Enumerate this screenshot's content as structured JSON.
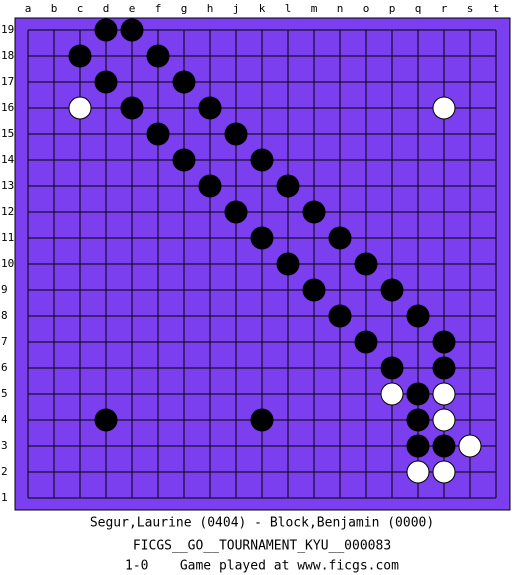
{
  "board": {
    "columns": [
      "a",
      "b",
      "c",
      "d",
      "e",
      "f",
      "g",
      "h",
      "j",
      "k",
      "l",
      "m",
      "n",
      "o",
      "p",
      "q",
      "r",
      "s",
      "t"
    ],
    "rows": [
      "19",
      "18",
      "17",
      "16",
      "15",
      "14",
      "13",
      "12",
      "11",
      "10",
      "9",
      "8",
      "7",
      "6",
      "5",
      "4",
      "3",
      "2",
      "1"
    ],
    "color": "#7b3ff0",
    "stones": [
      {
        "color": "black",
        "col": "d",
        "row": "19"
      },
      {
        "color": "black",
        "col": "e",
        "row": "19"
      },
      {
        "color": "black",
        "col": "c",
        "row": "18"
      },
      {
        "color": "black",
        "col": "f",
        "row": "18"
      },
      {
        "color": "black",
        "col": "d",
        "row": "17"
      },
      {
        "color": "black",
        "col": "g",
        "row": "17"
      },
      {
        "color": "white",
        "col": "c",
        "row": "16"
      },
      {
        "color": "black",
        "col": "e",
        "row": "16"
      },
      {
        "color": "black",
        "col": "h",
        "row": "16"
      },
      {
        "color": "white",
        "col": "r",
        "row": "16"
      },
      {
        "color": "black",
        "col": "f",
        "row": "15"
      },
      {
        "color": "black",
        "col": "j",
        "row": "15"
      },
      {
        "color": "black",
        "col": "g",
        "row": "14"
      },
      {
        "color": "black",
        "col": "k",
        "row": "14"
      },
      {
        "color": "black",
        "col": "h",
        "row": "13"
      },
      {
        "color": "black",
        "col": "l",
        "row": "13"
      },
      {
        "color": "black",
        "col": "j",
        "row": "12"
      },
      {
        "color": "black",
        "col": "m",
        "row": "12"
      },
      {
        "color": "black",
        "col": "k",
        "row": "11"
      },
      {
        "color": "black",
        "col": "n",
        "row": "11"
      },
      {
        "color": "black",
        "col": "l",
        "row": "10"
      },
      {
        "color": "black",
        "col": "o",
        "row": "10"
      },
      {
        "color": "black",
        "col": "m",
        "row": "9"
      },
      {
        "color": "black",
        "col": "p",
        "row": "9"
      },
      {
        "color": "black",
        "col": "n",
        "row": "8"
      },
      {
        "color": "black",
        "col": "q",
        "row": "8"
      },
      {
        "color": "black",
        "col": "o",
        "row": "7"
      },
      {
        "color": "black",
        "col": "r",
        "row": "7"
      },
      {
        "color": "black",
        "col": "p",
        "row": "6"
      },
      {
        "color": "black",
        "col": "r",
        "row": "6"
      },
      {
        "color": "white",
        "col": "p",
        "row": "5"
      },
      {
        "color": "black",
        "col": "q",
        "row": "5"
      },
      {
        "color": "white",
        "col": "r",
        "row": "5"
      },
      {
        "color": "black",
        "col": "d",
        "row": "4"
      },
      {
        "color": "black",
        "col": "k",
        "row": "4"
      },
      {
        "color": "black",
        "col": "q",
        "row": "4"
      },
      {
        "color": "white",
        "col": "r",
        "row": "4"
      },
      {
        "color": "black",
        "col": "q",
        "row": "3"
      },
      {
        "color": "black",
        "col": "r",
        "row": "3"
      },
      {
        "color": "white",
        "col": "s",
        "row": "3"
      },
      {
        "color": "white",
        "col": "q",
        "row": "2"
      },
      {
        "color": "white",
        "col": "r",
        "row": "2"
      }
    ]
  },
  "footer": {
    "players": "Segur,Laurine (0404) - Block,Benjamin (0000)",
    "tournament": "FICGS__GO__TOURNAMENT_KYU__000083",
    "result": "1-0    Game played at www.ficgs.com"
  }
}
